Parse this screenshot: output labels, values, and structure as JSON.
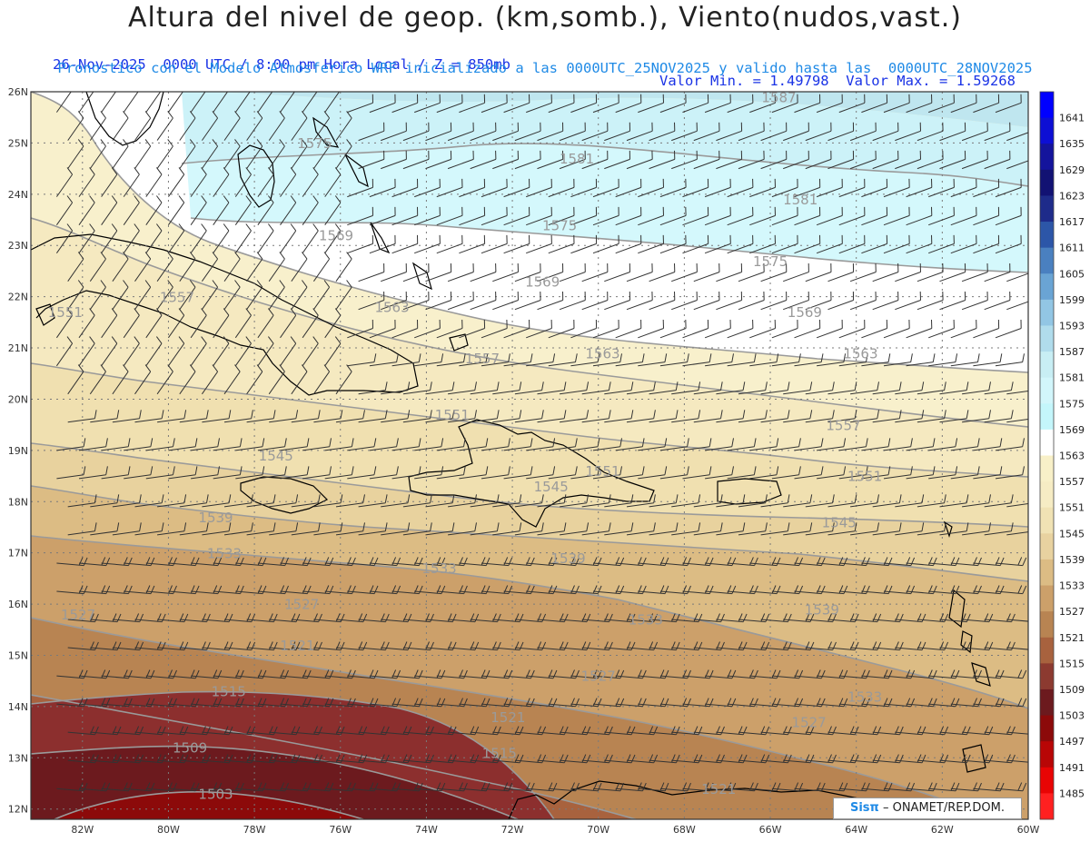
{
  "header": {
    "title": "Altura del nivel de geop. (km,somb.), Viento(nudos,vast.)",
    "line1_left": "26-Nov-2025  0000 UTC / 8:00 pm Hora Local / Z = 850mb",
    "line1_right": "Valor Min. = 1.49798  Valor Max. = 1.59268",
    "line2": "Pronostico con el Modelo Atmosferico WRF inicializado a las 0000UTC_25NOV2025 y valido hasta las  0000UTC_28NOV2025"
  },
  "map": {
    "lon_ticks": [
      "82W",
      "80W",
      "78W",
      "76W",
      "74W",
      "72W",
      "70W",
      "68W",
      "66W",
      "64W",
      "62W",
      "60W"
    ],
    "lat_ticks": [
      "26N",
      "25N",
      "24N",
      "23N",
      "22N",
      "21N",
      "20N",
      "19N",
      "18N",
      "17N",
      "16N",
      "15N",
      "14N",
      "13N",
      "12N"
    ],
    "lon_range": [
      -83.2,
      -60
    ],
    "lat_range": [
      11.8,
      26
    ],
    "contour_labels": [
      {
        "text": "1587",
        "lon": -65.8,
        "lat": 25.8
      },
      {
        "text": "1575",
        "lon": -76.6,
        "lat": 24.9
      },
      {
        "text": "1581",
        "lon": -70.5,
        "lat": 24.6
      },
      {
        "text": "1581",
        "lon": -65.3,
        "lat": 23.8
      },
      {
        "text": "1575",
        "lon": -70.9,
        "lat": 23.3
      },
      {
        "text": "1569",
        "lon": -76.1,
        "lat": 23.1
      },
      {
        "text": "1575",
        "lon": -66.0,
        "lat": 22.6
      },
      {
        "text": "1569",
        "lon": -71.3,
        "lat": 22.2
      },
      {
        "text": "1557",
        "lon": -79.8,
        "lat": 21.9
      },
      {
        "text": "1563",
        "lon": -74.8,
        "lat": 21.7
      },
      {
        "text": "1551",
        "lon": -82.4,
        "lat": 21.6
      },
      {
        "text": "1569",
        "lon": -65.2,
        "lat": 21.6
      },
      {
        "text": "1557",
        "lon": -72.7,
        "lat": 20.7
      },
      {
        "text": "1563",
        "lon": -69.9,
        "lat": 20.8
      },
      {
        "text": "1563",
        "lon": -63.9,
        "lat": 20.8
      },
      {
        "text": "1551",
        "lon": -73.4,
        "lat": 19.6
      },
      {
        "text": "1557",
        "lon": -64.3,
        "lat": 19.4
      },
      {
        "text": "1545",
        "lon": -77.5,
        "lat": 18.8
      },
      {
        "text": "1551",
        "lon": -69.9,
        "lat": 18.5
      },
      {
        "text": "1551",
        "lon": -63.8,
        "lat": 18.4
      },
      {
        "text": "1545",
        "lon": -71.1,
        "lat": 18.2
      },
      {
        "text": "1539",
        "lon": -78.9,
        "lat": 17.6
      },
      {
        "text": "1545",
        "lon": -64.4,
        "lat": 17.5
      },
      {
        "text": "1533",
        "lon": -78.7,
        "lat": 16.9
      },
      {
        "text": "1539",
        "lon": -70.7,
        "lat": 16.8
      },
      {
        "text": "1533",
        "lon": -73.7,
        "lat": 16.6
      },
      {
        "text": "1527",
        "lon": -76.9,
        "lat": 15.9
      },
      {
        "text": "1527",
        "lon": -82.1,
        "lat": 15.7
      },
      {
        "text": "1539",
        "lon": -64.8,
        "lat": 15.8
      },
      {
        "text": "1533",
        "lon": -68.9,
        "lat": 15.6
      },
      {
        "text": "1521",
        "lon": -77.0,
        "lat": 15.1
      },
      {
        "text": "1527",
        "lon": -70.0,
        "lat": 14.5
      },
      {
        "text": "1533",
        "lon": -63.8,
        "lat": 14.1
      },
      {
        "text": "1515",
        "lon": -78.6,
        "lat": 14.2
      },
      {
        "text": "1521",
        "lon": -72.1,
        "lat": 13.7
      },
      {
        "text": "1527",
        "lon": -65.1,
        "lat": 13.6
      },
      {
        "text": "1509",
        "lon": -79.5,
        "lat": 13.1
      },
      {
        "text": "1515",
        "lon": -72.3,
        "lat": 13.0
      },
      {
        "text": "1503",
        "lon": -78.9,
        "lat": 12.2
      },
      {
        "text": "1521",
        "lon": -67.2,
        "lat": 12.3
      }
    ]
  },
  "colorbar": {
    "labels": [
      "1641",
      "1635",
      "1629",
      "1623",
      "1617",
      "1611",
      "1605",
      "1599",
      "1593",
      "1587",
      "1581",
      "1575",
      "1569",
      "1563",
      "1557",
      "1551",
      "1545",
      "1539",
      "1533",
      "1527",
      "1521",
      "1515",
      "1509",
      "1503",
      "1497",
      "1491",
      "1485"
    ],
    "colors": [
      "#0000ff",
      "#0d0fd4",
      "#14149c",
      "#121273",
      "#1e2b8a",
      "#2c56a8",
      "#4a80c0",
      "#6aa4d4",
      "#92c6e4",
      "#b0dcec",
      "#c8eef4",
      "#d2f6fb",
      "#c4f6fb",
      "#ffffff",
      "#f8f0c8",
      "#f6ecc4",
      "#f0e2b4",
      "#e8d2a0",
      "#dcbc84",
      "#cca06a",
      "#b88452",
      "#a8623e",
      "#8c3a30",
      "#6c1a1e",
      "#8c0a0a",
      "#b80606",
      "#e80404",
      "#ff2020"
    ]
  },
  "footer": {
    "brand": "Sisπ",
    "org": "– ONAMET/REP.DOM."
  }
}
